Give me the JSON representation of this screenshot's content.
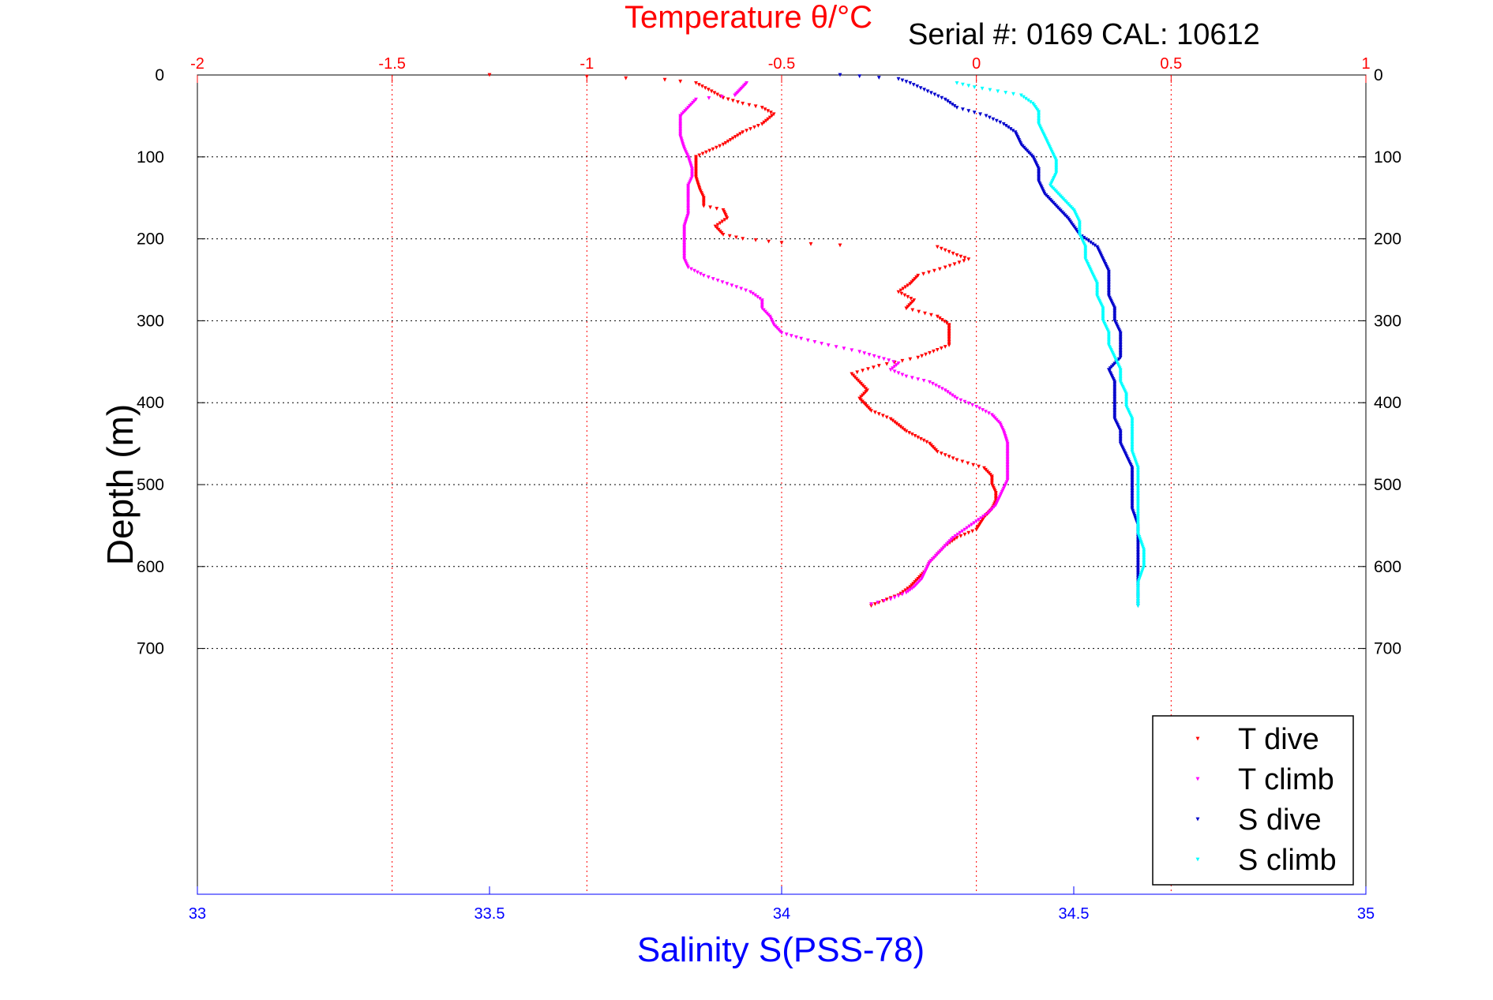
{
  "chart_data": {
    "type": "scatter",
    "title": "Temperature θ/°C",
    "subtitle": "Serial #: 0169 CAL: 10612",
    "ylabel": "Depth (m)",
    "xlabel_bottom": "Salinity S(PSS-78)",
    "xlabel_top": "Temperature θ/°C",
    "x_top_range": [
      -2,
      1
    ],
    "x_top_ticks": [
      "-2",
      "-1.5",
      "-1",
      "-0.5",
      "0",
      "0.5",
      "1"
    ],
    "x_bottom_range": [
      33,
      35
    ],
    "x_bottom_ticks": [
      "33",
      "33.5",
      "34",
      "34.5",
      "35"
    ],
    "y_range": [
      0,
      1000
    ],
    "y_reversed": true,
    "y_ticks": [
      "0",
      "100",
      "200",
      "300",
      "400",
      "500",
      "600",
      "700"
    ],
    "grid": true,
    "legend_position": "bottom-right",
    "colors": {
      "temperature_axis": "#ff0000",
      "salinity_axis": "#0000ff",
      "T dive": "#ff0000",
      "T climb": "#ff00ff",
      "S dive": "#0000cc",
      "S climb": "#00ffff"
    },
    "series": [
      {
        "name": "T dive",
        "axis": "temperature",
        "points": [
          [
            -1.25,
            0
          ],
          [
            -1.0,
            2
          ],
          [
            -0.8,
            6
          ],
          [
            -0.72,
            10
          ],
          [
            -0.68,
            20
          ],
          [
            -0.65,
            28
          ],
          [
            -0.6,
            35
          ],
          [
            -0.55,
            40
          ],
          [
            -0.52,
            48
          ],
          [
            -0.55,
            60
          ],
          [
            -0.6,
            70
          ],
          [
            -0.65,
            85
          ],
          [
            -0.72,
            100
          ],
          [
            -0.72,
            125
          ],
          [
            -0.71,
            140
          ],
          [
            -0.7,
            150
          ],
          [
            -0.7,
            160
          ],
          [
            -0.65,
            165
          ],
          [
            -0.64,
            175
          ],
          [
            -0.67,
            185
          ],
          [
            -0.65,
            195
          ],
          [
            -0.6,
            200
          ],
          [
            -0.5,
            205
          ],
          [
            -0.35,
            208
          ],
          [
            -0.1,
            210
          ],
          [
            -0.05,
            220
          ],
          [
            -0.02,
            225
          ],
          [
            -0.08,
            235
          ],
          [
            -0.15,
            245
          ],
          [
            -0.17,
            255
          ],
          [
            -0.2,
            265
          ],
          [
            -0.16,
            275
          ],
          [
            -0.18,
            285
          ],
          [
            -0.1,
            295
          ],
          [
            -0.07,
            305
          ],
          [
            -0.07,
            320
          ],
          [
            -0.07,
            330
          ],
          [
            -0.15,
            345
          ],
          [
            -0.25,
            355
          ],
          [
            -0.32,
            365
          ],
          [
            -0.3,
            375
          ],
          [
            -0.28,
            385
          ],
          [
            -0.3,
            395
          ],
          [
            -0.27,
            410
          ],
          [
            -0.22,
            420
          ],
          [
            -0.18,
            435
          ],
          [
            -0.12,
            450
          ],
          [
            -0.1,
            460
          ],
          [
            -0.05,
            470
          ],
          [
            0.02,
            480
          ],
          [
            0.04,
            490
          ],
          [
            0.04,
            500
          ],
          [
            0.05,
            510
          ],
          [
            0.05,
            520
          ],
          [
            0.04,
            530
          ],
          [
            0.02,
            540
          ],
          [
            0.0,
            555
          ],
          [
            -0.05,
            565
          ],
          [
            -0.08,
            575
          ],
          [
            -0.1,
            585
          ],
          [
            -0.12,
            595
          ],
          [
            -0.13,
            605
          ],
          [
            -0.15,
            615
          ],
          [
            -0.17,
            625
          ],
          [
            -0.2,
            635
          ],
          [
            -0.24,
            642
          ],
          [
            -0.27,
            648
          ]
        ]
      },
      {
        "name": "T climb",
        "axis": "temperature",
        "points": [
          [
            -0.59,
            10
          ],
          [
            -0.6,
            15
          ],
          [
            -0.61,
            20
          ],
          [
            -0.62,
            25
          ],
          [
            -0.72,
            30
          ],
          [
            -0.74,
            40
          ],
          [
            -0.76,
            50
          ],
          [
            -0.76,
            60
          ],
          [
            -0.76,
            75
          ],
          [
            -0.75,
            90
          ],
          [
            -0.74,
            100
          ],
          [
            -0.73,
            115
          ],
          [
            -0.73,
            125
          ],
          [
            -0.74,
            135
          ],
          [
            -0.74,
            150
          ],
          [
            -0.74,
            170
          ],
          [
            -0.75,
            185
          ],
          [
            -0.75,
            200
          ],
          [
            -0.75,
            215
          ],
          [
            -0.75,
            225
          ],
          [
            -0.74,
            235
          ],
          [
            -0.7,
            245
          ],
          [
            -0.64,
            255
          ],
          [
            -0.58,
            265
          ],
          [
            -0.55,
            275
          ],
          [
            -0.55,
            285
          ],
          [
            -0.53,
            295
          ],
          [
            -0.52,
            305
          ],
          [
            -0.5,
            315
          ],
          [
            -0.45,
            322
          ],
          [
            -0.38,
            330
          ],
          [
            -0.3,
            338
          ],
          [
            -0.25,
            345
          ],
          [
            -0.2,
            352
          ],
          [
            -0.22,
            360
          ],
          [
            -0.18,
            368
          ],
          [
            -0.12,
            375
          ],
          [
            -0.08,
            385
          ],
          [
            -0.05,
            395
          ],
          [
            0.0,
            405
          ],
          [
            0.04,
            415
          ],
          [
            0.06,
            425
          ],
          [
            0.07,
            435
          ],
          [
            0.08,
            450
          ],
          [
            0.08,
            465
          ],
          [
            0.08,
            480
          ],
          [
            0.08,
            495
          ],
          [
            0.07,
            505
          ],
          [
            0.06,
            515
          ],
          [
            0.05,
            525
          ],
          [
            0.03,
            535
          ],
          [
            0.0,
            545
          ],
          [
            -0.03,
            555
          ],
          [
            -0.06,
            565
          ],
          [
            -0.08,
            575
          ],
          [
            -0.1,
            585
          ],
          [
            -0.12,
            595
          ],
          [
            -0.13,
            605
          ],
          [
            -0.14,
            615
          ],
          [
            -0.16,
            625
          ],
          [
            -0.18,
            632
          ],
          [
            -0.22,
            640
          ],
          [
            -0.27,
            646
          ]
        ]
      },
      {
        "name": "S dive",
        "axis": "salinity",
        "points": [
          [
            34.1,
            0
          ],
          [
            34.2,
            5
          ],
          [
            34.22,
            10
          ],
          [
            34.25,
            20
          ],
          [
            34.28,
            30
          ],
          [
            34.3,
            40
          ],
          [
            34.35,
            50
          ],
          [
            34.38,
            60
          ],
          [
            34.4,
            70
          ],
          [
            34.41,
            85
          ],
          [
            34.43,
            100
          ],
          [
            34.44,
            115
          ],
          [
            34.44,
            130
          ],
          [
            34.45,
            145
          ],
          [
            34.47,
            160
          ],
          [
            34.49,
            175
          ],
          [
            34.5,
            185
          ],
          [
            34.51,
            195
          ],
          [
            34.54,
            210
          ],
          [
            34.55,
            225
          ],
          [
            34.56,
            240
          ],
          [
            34.56,
            255
          ],
          [
            34.56,
            270
          ],
          [
            34.57,
            285
          ],
          [
            34.57,
            300
          ],
          [
            34.58,
            315
          ],
          [
            34.58,
            330
          ],
          [
            34.58,
            345
          ],
          [
            34.56,
            360
          ],
          [
            34.57,
            375
          ],
          [
            34.57,
            390
          ],
          [
            34.57,
            405
          ],
          [
            34.57,
            420
          ],
          [
            34.58,
            435
          ],
          [
            34.58,
            450
          ],
          [
            34.59,
            465
          ],
          [
            34.6,
            480
          ],
          [
            34.6,
            495
          ],
          [
            34.6,
            510
          ],
          [
            34.6,
            530
          ],
          [
            34.61,
            550
          ],
          [
            34.61,
            570
          ],
          [
            34.61,
            590
          ],
          [
            34.61,
            610
          ],
          [
            34.61,
            630
          ],
          [
            34.61,
            648
          ]
        ]
      },
      {
        "name": "S climb",
        "axis": "salinity",
        "points": [
          [
            34.3,
            10
          ],
          [
            34.33,
            15
          ],
          [
            34.37,
            20
          ],
          [
            34.41,
            25
          ],
          [
            34.43,
            35
          ],
          [
            34.44,
            45
          ],
          [
            34.44,
            60
          ],
          [
            34.45,
            75
          ],
          [
            34.46,
            90
          ],
          [
            34.47,
            105
          ],
          [
            34.47,
            120
          ],
          [
            34.46,
            135
          ],
          [
            34.48,
            150
          ],
          [
            34.5,
            165
          ],
          [
            34.51,
            180
          ],
          [
            34.51,
            195
          ],
          [
            34.52,
            210
          ],
          [
            34.52,
            225
          ],
          [
            34.53,
            240
          ],
          [
            34.54,
            255
          ],
          [
            34.54,
            270
          ],
          [
            34.55,
            285
          ],
          [
            34.55,
            300
          ],
          [
            34.56,
            315
          ],
          [
            34.56,
            330
          ],
          [
            34.57,
            345
          ],
          [
            34.58,
            360
          ],
          [
            34.58,
            375
          ],
          [
            34.59,
            390
          ],
          [
            34.59,
            405
          ],
          [
            34.6,
            420
          ],
          [
            34.6,
            440
          ],
          [
            34.6,
            460
          ],
          [
            34.61,
            480
          ],
          [
            34.61,
            500
          ],
          [
            34.61,
            520
          ],
          [
            34.61,
            540
          ],
          [
            34.61,
            560
          ],
          [
            34.62,
            580
          ],
          [
            34.62,
            600
          ],
          [
            34.61,
            620
          ],
          [
            34.61,
            640
          ],
          [
            34.61,
            648
          ]
        ]
      }
    ]
  }
}
